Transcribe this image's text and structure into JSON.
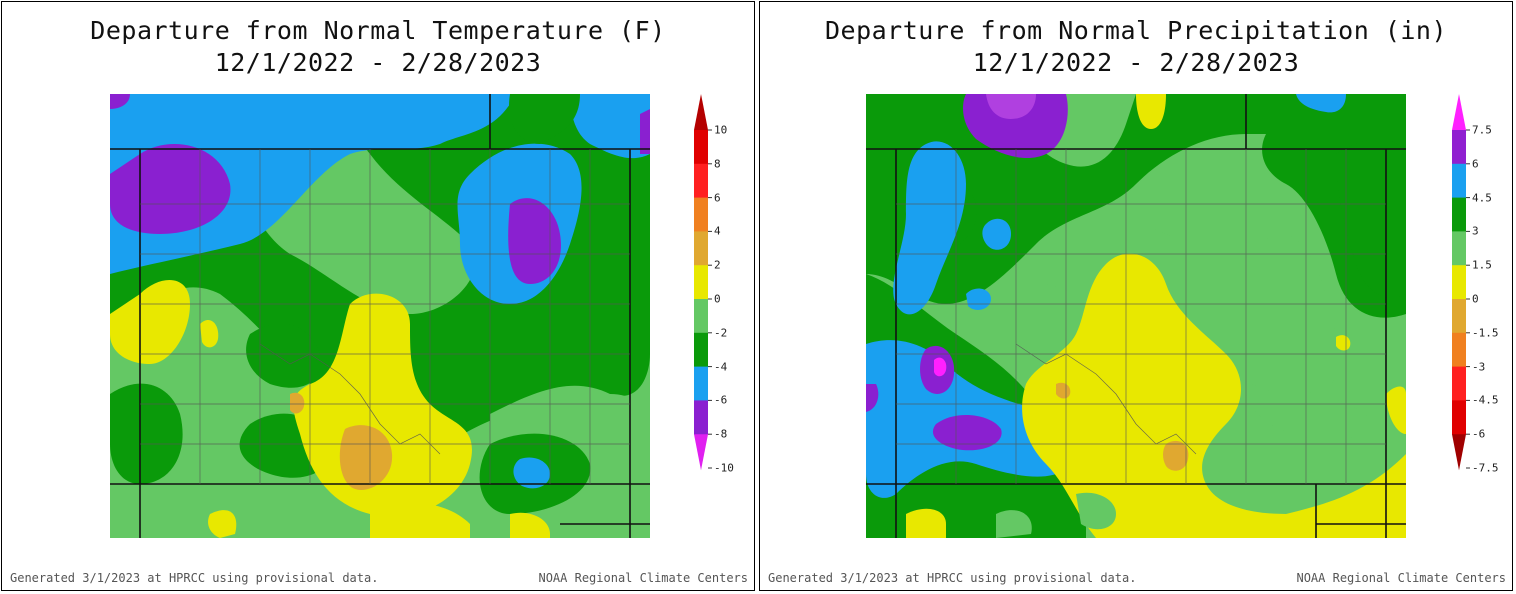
{
  "panels": [
    {
      "title_line1": "Departure from Normal Temperature (F)",
      "title_line2": "12/1/2022 - 2/28/2023",
      "colorbar": {
        "labels": [
          "10",
          "8",
          "6",
          "4",
          "2",
          "0",
          "-2",
          "-4",
          "-6",
          "-8",
          "-10"
        ],
        "colors": [
          "#b40000",
          "#e00000",
          "#ff2020",
          "#f08020",
          "#e0a830",
          "#e8e800",
          "#64c864",
          "#0a9a0a",
          "#1aa0f0",
          "#8a20d0",
          "#e020f0"
        ]
      },
      "footer_left": "Generated 3/1/2023 at HPRCC using provisional data.",
      "footer_right": "NOAA Regional Climate Centers"
    },
    {
      "title_line1": "Departure from Normal Precipitation (in)",
      "title_line2": "12/1/2022 - 2/28/2023",
      "colorbar": {
        "labels": [
          "7.5",
          "6",
          "4.5",
          "3",
          "1.5",
          "0",
          "-1.5",
          "-3",
          "-4.5",
          "-6",
          "-7.5"
        ],
        "colors": [
          "#ff20ff",
          "#9020d0",
          "#1aa0f0",
          "#0a9a0a",
          "#64c864",
          "#e8e800",
          "#e0a830",
          "#f08020",
          "#ff2020",
          "#e00000",
          "#a00000"
        ]
      },
      "footer_left": "Generated 3/1/2023 at HPRCC using provisional data.",
      "footer_right": "NOAA Regional Climate Centers"
    }
  ]
}
